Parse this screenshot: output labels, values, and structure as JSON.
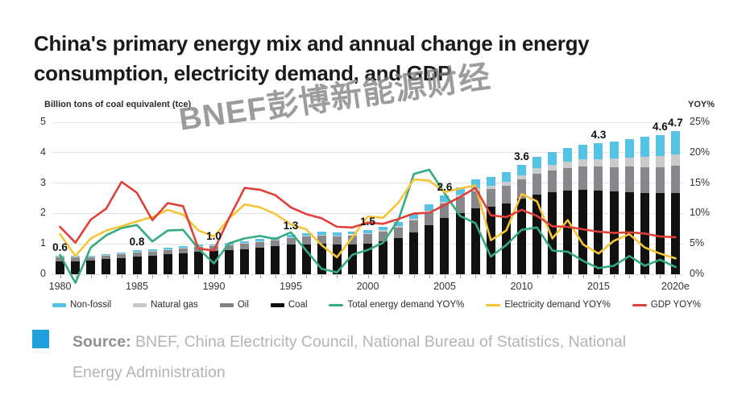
{
  "title": {
    "line1": "China's primary energy mix and annual change in energy",
    "line2": "consumption, electricity demand, and GDP"
  },
  "watermark": "BNEF彭博新能源财经",
  "source": {
    "label": "Source:",
    "text": " BNEF, China Electricity Council, National Bureau of Statistics, National Energy Administration",
    "bullet_color": "#1e9fde"
  },
  "chart_data": {
    "type": "bar",
    "subtype": "stacked-bars-with-lines-combo",
    "left_axis": {
      "label": "Billion tons of coal equivalent (tce)",
      "ticks": [
        0,
        1,
        2,
        3,
        4,
        5
      ],
      "range": [
        0,
        5
      ],
      "grid": true
    },
    "right_axis": {
      "label": "YOY%",
      "ticks": [
        "0%",
        "5%",
        "10%",
        "15%",
        "20%",
        "25%"
      ],
      "tick_values": [
        0,
        5,
        10,
        15,
        20,
        25
      ],
      "range": [
        0,
        25
      ]
    },
    "x_axis": {
      "tick_labels": [
        "1980",
        "1985",
        "1990",
        "1995",
        "2000",
        "2005",
        "2010",
        "2015",
        "2020e"
      ],
      "label_every": 5
    },
    "years": [
      1980,
      1981,
      1982,
      1983,
      1984,
      1985,
      1986,
      1987,
      1988,
      1989,
      1990,
      1991,
      1992,
      1993,
      1994,
      1995,
      1996,
      1997,
      1998,
      1999,
      2000,
      2001,
      2002,
      2003,
      2004,
      2005,
      2006,
      2007,
      2008,
      2009,
      2010,
      2011,
      2012,
      2013,
      2014,
      2015,
      2016,
      2017,
      2018,
      2019,
      2020
    ],
    "bar_series": [
      {
        "name": "Coal",
        "color": "#111111",
        "values": [
          0.43,
          0.43,
          0.45,
          0.49,
          0.53,
          0.59,
          0.61,
          0.66,
          0.7,
          0.74,
          0.76,
          0.79,
          0.82,
          0.87,
          0.92,
          0.98,
          0.99,
          1.0,
          0.97,
          0.98,
          1.01,
          1.08,
          1.19,
          1.38,
          1.62,
          1.85,
          2.02,
          2.18,
          2.23,
          2.33,
          2.48,
          2.63,
          2.69,
          2.75,
          2.77,
          2.75,
          2.72,
          2.71,
          2.68,
          2.66,
          2.68
        ]
      },
      {
        "name": "Oil",
        "color": "#85878a",
        "values": [
          0.13,
          0.12,
          0.12,
          0.12,
          0.13,
          0.13,
          0.14,
          0.15,
          0.16,
          0.16,
          0.16,
          0.17,
          0.18,
          0.2,
          0.21,
          0.23,
          0.25,
          0.27,
          0.28,
          0.3,
          0.32,
          0.33,
          0.35,
          0.39,
          0.43,
          0.47,
          0.51,
          0.55,
          0.57,
          0.59,
          0.63,
          0.68,
          0.72,
          0.75,
          0.77,
          0.79,
          0.81,
          0.83,
          0.85,
          0.87,
          0.89
        ]
      },
      {
        "name": "Natural gas",
        "color": "#c9cbcd",
        "values": [
          0.02,
          0.02,
          0.02,
          0.02,
          0.02,
          0.02,
          0.02,
          0.02,
          0.02,
          0.02,
          0.02,
          0.02,
          0.02,
          0.02,
          0.02,
          0.02,
          0.03,
          0.03,
          0.03,
          0.03,
          0.03,
          0.04,
          0.04,
          0.05,
          0.05,
          0.06,
          0.08,
          0.1,
          0.11,
          0.12,
          0.14,
          0.17,
          0.19,
          0.21,
          0.24,
          0.25,
          0.28,
          0.3,
          0.33,
          0.35,
          0.38
        ]
      },
      {
        "name": "Non-fossil",
        "color": "#55c3e6",
        "values": [
          0.02,
          0.03,
          0.03,
          0.03,
          0.04,
          0.05,
          0.05,
          0.05,
          0.05,
          0.05,
          0.05,
          0.06,
          0.06,
          0.07,
          0.08,
          0.08,
          0.09,
          0.09,
          0.09,
          0.09,
          0.1,
          0.11,
          0.13,
          0.16,
          0.19,
          0.22,
          0.25,
          0.28,
          0.29,
          0.31,
          0.34,
          0.39,
          0.42,
          0.45,
          0.48,
          0.51,
          0.55,
          0.61,
          0.66,
          0.71,
          0.75
        ]
      }
    ],
    "line_series": [
      {
        "name": "Total energy demand YOY%",
        "color": "#35ac7f",
        "values": [
          3.2,
          -1.4,
          4.4,
          6.4,
          7.6,
          8.1,
          5.4,
          7.2,
          7.3,
          4.2,
          1.8,
          5.1,
          5.9,
          6.3,
          5.8,
          6.9,
          3.9,
          0.9,
          0.3,
          3.2,
          4.0,
          5.2,
          9.0,
          16.5,
          17.2,
          13.3,
          9.6,
          8.4,
          2.9,
          4.8,
          7.3,
          7.7,
          3.9,
          3.7,
          2.2,
          1.0,
          1.4,
          3.0,
          1.4,
          2.4,
          1.2
        ]
      },
      {
        "name": "Electricity demand YOY%",
        "color": "#f6c436",
        "values": [
          6.6,
          3.0,
          5.9,
          7.2,
          7.9,
          8.7,
          9.4,
          10.6,
          9.8,
          7.2,
          6.2,
          9.2,
          11.5,
          11.0,
          9.9,
          8.2,
          7.4,
          4.8,
          2.8,
          6.1,
          9.5,
          9.3,
          11.8,
          15.6,
          15.4,
          13.5,
          14.1,
          14.6,
          5.6,
          7.2,
          13.2,
          12.0,
          5.9,
          8.9,
          4.9,
          3.4,
          5.5,
          6.6,
          4.4,
          3.4,
          2.6
        ]
      },
      {
        "name": "GDP YOY%",
        "color": "#df4038",
        "values": [
          7.8,
          5.2,
          9.0,
          10.8,
          15.2,
          13.4,
          8.9,
          11.7,
          11.2,
          4.2,
          3.9,
          9.3,
          14.2,
          13.9,
          13.0,
          11.0,
          9.9,
          9.2,
          7.8,
          7.7,
          8.5,
          8.3,
          9.1,
          10.0,
          10.1,
          11.4,
          12.7,
          14.2,
          9.7,
          9.4,
          10.6,
          9.6,
          7.9,
          7.8,
          7.4,
          7.0,
          6.8,
          6.9,
          6.7,
          6.2,
          6.1
        ]
      }
    ],
    "bar_labels": [
      {
        "year": 1980,
        "text": "0.6"
      },
      {
        "year": 1985,
        "text": "0.8"
      },
      {
        "year": 1990,
        "text": "1.0"
      },
      {
        "year": 1995,
        "text": "1.3"
      },
      {
        "year": 2000,
        "text": "1.5"
      },
      {
        "year": 2005,
        "text": "2.6"
      },
      {
        "year": 2010,
        "text": "3.6"
      },
      {
        "year": 2015,
        "text": "4.3"
      },
      {
        "year": 2019,
        "text": "4.6"
      },
      {
        "year": 2020,
        "text": "4.7"
      }
    ],
    "legend": [
      {
        "label": "Non-fossil",
        "color": "#55c3e6",
        "swatch": "bar"
      },
      {
        "label": "Natural gas",
        "color": "#c6c8ca",
        "swatch": "bar"
      },
      {
        "label": "Oil",
        "color": "#808285",
        "swatch": "bar"
      },
      {
        "label": "Coal",
        "color": "#111111",
        "swatch": "bar"
      },
      {
        "label": "Total energy demand YOY%",
        "color": "#35ac7f",
        "swatch": "line"
      },
      {
        "label": "Electricity demand YOY%",
        "color": "#f6c436",
        "swatch": "line"
      },
      {
        "label": "GDP YOY%",
        "color": "#df4038",
        "swatch": "line"
      }
    ]
  }
}
